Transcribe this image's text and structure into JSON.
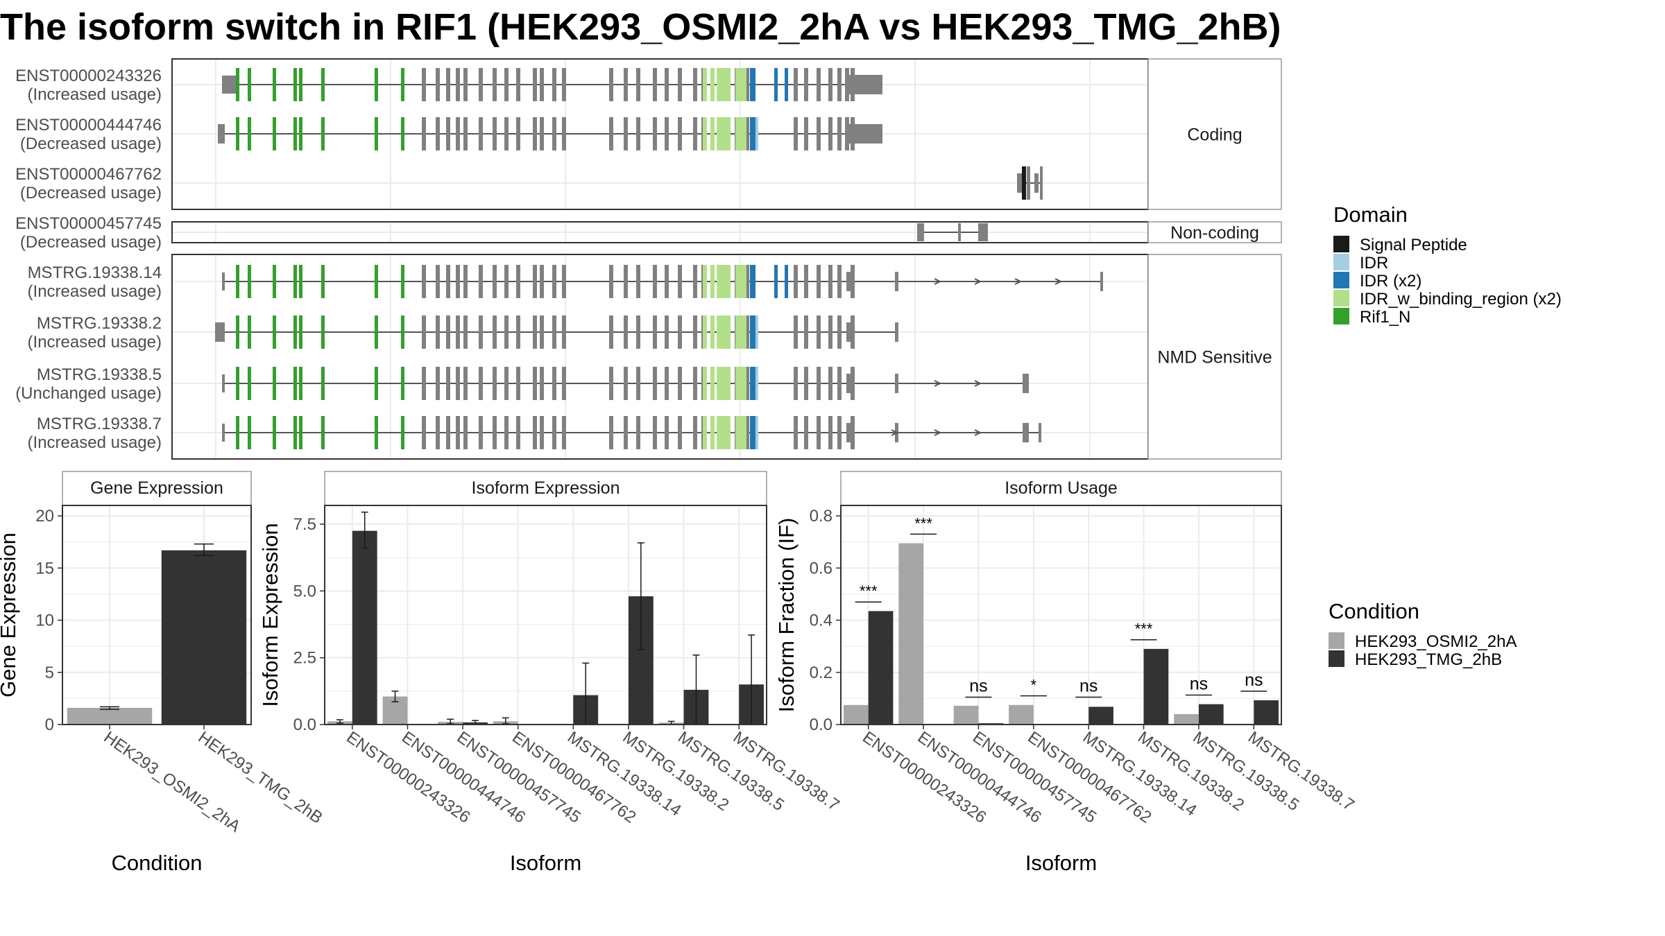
{
  "title": "The isoform switch in RIF1 (HEK293_OSMI2_2hA vs HEK293_TMG_2hB)",
  "colors": {
    "intron": "#555555",
    "exon": "#808080",
    "cond_a": "#a6a6a6",
    "cond_b": "#333333",
    "panel_border": "#333333",
    "strip_border": "#999999",
    "grid": "#ebebeb"
  },
  "chart_data": [
    {
      "type": "transcript_structure",
      "domain_legend": {
        "title": "Domain",
        "entries": [
          {
            "label": "Signal Peptide",
            "color": "#1a1a1a"
          },
          {
            "label": "IDR",
            "color": "#a6cee3"
          },
          {
            "label": "IDR (x2)",
            "color": "#1f78b4"
          },
          {
            "label": "IDR_w_binding_region (x2)",
            "color": "#b2df8a"
          },
          {
            "label": "Rif1_N",
            "color": "#33a02c"
          }
        ]
      },
      "groups": [
        {
          "label": "Coding",
          "isoforms": [
            {
              "id": "ENST00000243326",
              "usage": "(Increased usage)",
              "model": "full",
              "prefix": "big",
              "tail": "bigbox",
              "blue_extra": true
            },
            {
              "id": "ENST00000444746",
              "usage": "(Decreased usage)",
              "model": "full",
              "prefix": "small",
              "tail": "bigbox",
              "blue_extra": false
            },
            {
              "id": "ENST00000467762",
              "usage": "(Decreased usage)",
              "model": "short_467762"
            }
          ]
        },
        {
          "label": "Non-coding",
          "isoforms": [
            {
              "id": "ENST00000457745",
              "usage": "(Decreased usage)",
              "model": "short_457745"
            }
          ]
        },
        {
          "label": "NMD Sensitive",
          "isoforms": [
            {
              "id": "MSTRG.19338.14",
              "usage": "(Increased usage)",
              "model": "full",
              "prefix": "thin",
              "tail": "long",
              "blue_extra": true
            },
            {
              "id": "MSTRG.19338.2",
              "usage": "(Increased usage)",
              "model": "full",
              "prefix": "block",
              "tail": "short",
              "blue_extra": false
            },
            {
              "id": "MSTRG.19338.5",
              "usage": "(Unchanged usage)",
              "model": "full",
              "prefix": "thin",
              "tail": "mid",
              "blue_extra": false
            },
            {
              "id": "MSTRG.19338.7",
              "usage": "(Increased usage)",
              "model": "full",
              "prefix": "thin",
              "tail": "mid2",
              "blue_extra": false
            }
          ]
        }
      ]
    },
    {
      "type": "bar",
      "panel": "Gene Expression",
      "xlabel": "Condition",
      "ylabel": "Gene Expression",
      "ylim": [
        0,
        21
      ],
      "yticks": [
        "0",
        "5",
        "10",
        "15",
        "20"
      ],
      "categories": [
        "HEK293_OSMI2_2hA",
        "HEK293_TMG_2hB"
      ],
      "values": [
        1.6,
        16.7
      ],
      "err_low": [
        1.45,
        16.2
      ],
      "err_high": [
        1.7,
        17.3
      ]
    },
    {
      "type": "bar",
      "panel": "Isoform Expression",
      "xlabel": "Isoform",
      "ylabel": "Isoform Expression",
      "ylim": [
        0,
        8.2
      ],
      "yticks": [
        "0.0",
        "2.5",
        "5.0",
        "7.5"
      ],
      "categories": [
        "ENST00000243326",
        "ENST00000444746",
        "ENST00000457745",
        "ENST00000467762",
        "MSTRG.19338.14",
        "MSTRG.19338.2",
        "MSTRG.19338.5",
        "MSTRG.19338.7"
      ],
      "series": [
        {
          "name": "HEK293_OSMI2_2hA",
          "values": [
            0.12,
            1.05,
            0.1,
            0.12,
            0.0,
            0.0,
            0.07,
            0.0
          ],
          "err_low": [
            0.05,
            0.85,
            0.03,
            0.03,
            0.0,
            0.0,
            0.0,
            0.0
          ],
          "err_high": [
            0.18,
            1.25,
            0.2,
            0.25,
            0.0,
            0.0,
            0.12,
            0.0
          ]
        },
        {
          "name": "HEK293_TMG_2hB",
          "values": [
            7.25,
            0.0,
            0.08,
            0.0,
            1.1,
            4.8,
            1.3,
            1.5
          ],
          "err_low": [
            6.6,
            0.0,
            0.0,
            0.0,
            0.0,
            2.8,
            0.0,
            0.0
          ],
          "err_high": [
            7.95,
            0.0,
            0.15,
            0.0,
            2.3,
            6.8,
            2.6,
            3.35
          ]
        }
      ]
    },
    {
      "type": "bar",
      "panel": "Isoform Usage",
      "xlabel": "Isoform",
      "ylabel": "Isoform Fraction (IF)",
      "ylim": [
        0,
        0.84
      ],
      "yticks": [
        "0.0",
        "0.2",
        "0.4",
        "0.6",
        "0.8"
      ],
      "categories": [
        "ENST00000243326",
        "ENST00000444746",
        "ENST00000457745",
        "ENST00000467762",
        "MSTRG.19338.14",
        "MSTRG.19338.2",
        "MSTRG.19338.5",
        "MSTRG.19338.7"
      ],
      "series": [
        {
          "name": "HEK293_OSMI2_2hA",
          "values": [
            0.075,
            0.695,
            0.072,
            0.075,
            0.0,
            0.0,
            0.04,
            0.0
          ]
        },
        {
          "name": "HEK293_TMG_2hB",
          "values": [
            0.435,
            0.0,
            0.005,
            0.0,
            0.068,
            0.29,
            0.078,
            0.093
          ]
        }
      ],
      "significance": [
        "***",
        "***",
        "ns",
        "*",
        "ns",
        "***",
        "ns",
        "ns"
      ],
      "sig_y": [
        0.47,
        0.73,
        0.105,
        0.11,
        0.105,
        0.325,
        0.113,
        0.128
      ]
    }
  ],
  "condition_legend": {
    "title": "Condition",
    "entries": [
      {
        "label": "HEK293_OSMI2_2hA",
        "color": "#a6a6a6"
      },
      {
        "label": "HEK293_TMG_2hB",
        "color": "#333333"
      }
    ]
  }
}
